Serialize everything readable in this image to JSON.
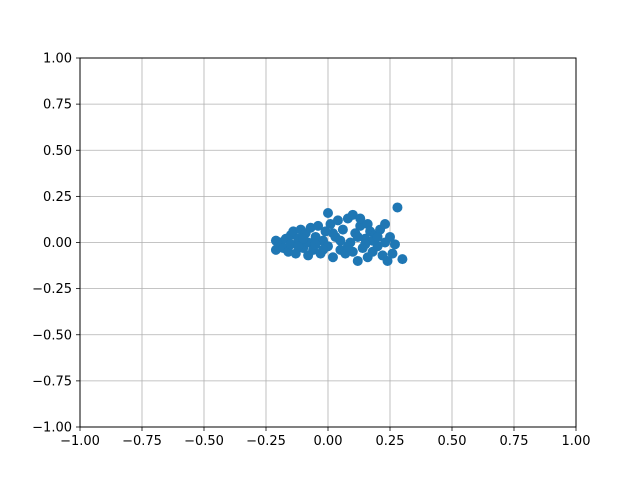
{
  "chart_data": {
    "type": "scatter",
    "title": "",
    "xlabel": "",
    "ylabel": "",
    "xlim": [
      -1.0,
      1.0
    ],
    "ylim": [
      -1.0,
      1.0
    ],
    "grid": true,
    "legend": "none",
    "marker_color": "#1f77b4",
    "x_ticks": [
      "−1.00",
      "−0.75",
      "−0.50",
      "−0.25",
      "0.00",
      "0.25",
      "0.50",
      "0.75",
      "1.00"
    ],
    "y_ticks": [
      "−1.00",
      "−0.75",
      "−0.50",
      "−0.25",
      "0.00",
      "0.25",
      "0.50",
      "0.75",
      "1.00"
    ],
    "x_tick_values": [
      -1.0,
      -0.75,
      -0.5,
      -0.25,
      0.0,
      0.25,
      0.5,
      0.75,
      1.0
    ],
    "y_tick_values": [
      -1.0,
      -0.75,
      -0.5,
      -0.25,
      0.0,
      0.25,
      0.5,
      0.75,
      1.0
    ],
    "series": [
      {
        "points": [
          [
            -0.21,
            -0.04
          ],
          [
            -0.21,
            0.01
          ],
          [
            -0.2,
            -0.02
          ],
          [
            -0.19,
            0.0
          ],
          [
            -0.18,
            -0.03
          ],
          [
            -0.17,
            0.02
          ],
          [
            -0.16,
            -0.05
          ],
          [
            -0.15,
            0.04
          ],
          [
            -0.15,
            -0.01
          ],
          [
            -0.14,
            0.06
          ],
          [
            -0.13,
            -0.06
          ],
          [
            -0.12,
            0.02
          ],
          [
            -0.11,
            0.07
          ],
          [
            -0.1,
            -0.03
          ],
          [
            -0.09,
            0.05
          ],
          [
            -0.08,
            -0.07
          ],
          [
            -0.08,
            0.0
          ],
          [
            -0.07,
            0.08
          ],
          [
            -0.06,
            -0.04
          ],
          [
            -0.05,
            0.03
          ],
          [
            -0.04,
            0.09
          ],
          [
            -0.03,
            -0.06
          ],
          [
            -0.02,
            0.01
          ],
          [
            -0.01,
            0.06
          ],
          [
            0.0,
            -0.02
          ],
          [
            0.0,
            0.16
          ],
          [
            0.01,
            0.1
          ],
          [
            0.02,
            -0.08
          ],
          [
            0.03,
            0.03
          ],
          [
            0.04,
            0.12
          ],
          [
            0.05,
            -0.04
          ],
          [
            0.06,
            0.07
          ],
          [
            0.07,
            -0.06
          ],
          [
            0.08,
            0.13
          ],
          [
            0.09,
            0.0
          ],
          [
            0.1,
            0.15
          ],
          [
            0.1,
            -0.05
          ],
          [
            0.11,
            0.05
          ],
          [
            0.12,
            -0.1
          ],
          [
            0.13,
            0.09
          ],
          [
            0.13,
            0.13
          ],
          [
            0.14,
            -0.03
          ],
          [
            0.15,
            0.02
          ],
          [
            0.16,
            -0.08
          ],
          [
            0.16,
            0.1
          ],
          [
            0.17,
            0.06
          ],
          [
            0.18,
            -0.05
          ],
          [
            0.19,
            0.04
          ],
          [
            0.2,
            -0.02
          ],
          [
            0.21,
            0.07
          ],
          [
            0.22,
            -0.07
          ],
          [
            0.23,
            0.1
          ],
          [
            0.23,
            0.0
          ],
          [
            0.24,
            -0.1
          ],
          [
            0.25,
            0.03
          ],
          [
            0.26,
            -0.06
          ],
          [
            0.27,
            -0.01
          ],
          [
            0.28,
            0.19
          ],
          [
            0.3,
            -0.09
          ],
          [
            -0.12,
            -0.02
          ],
          [
            -0.05,
            -0.01
          ],
          [
            0.02,
            0.05
          ],
          [
            0.08,
            -0.02
          ],
          [
            0.12,
            0.03
          ],
          [
            0.18,
            0.01
          ],
          [
            -0.1,
            0.02
          ],
          [
            0.05,
            0.01
          ],
          [
            0.15,
            -0.01
          ],
          [
            -0.02,
            -0.04
          ],
          [
            0.2,
            0.03
          ]
        ]
      }
    ]
  }
}
